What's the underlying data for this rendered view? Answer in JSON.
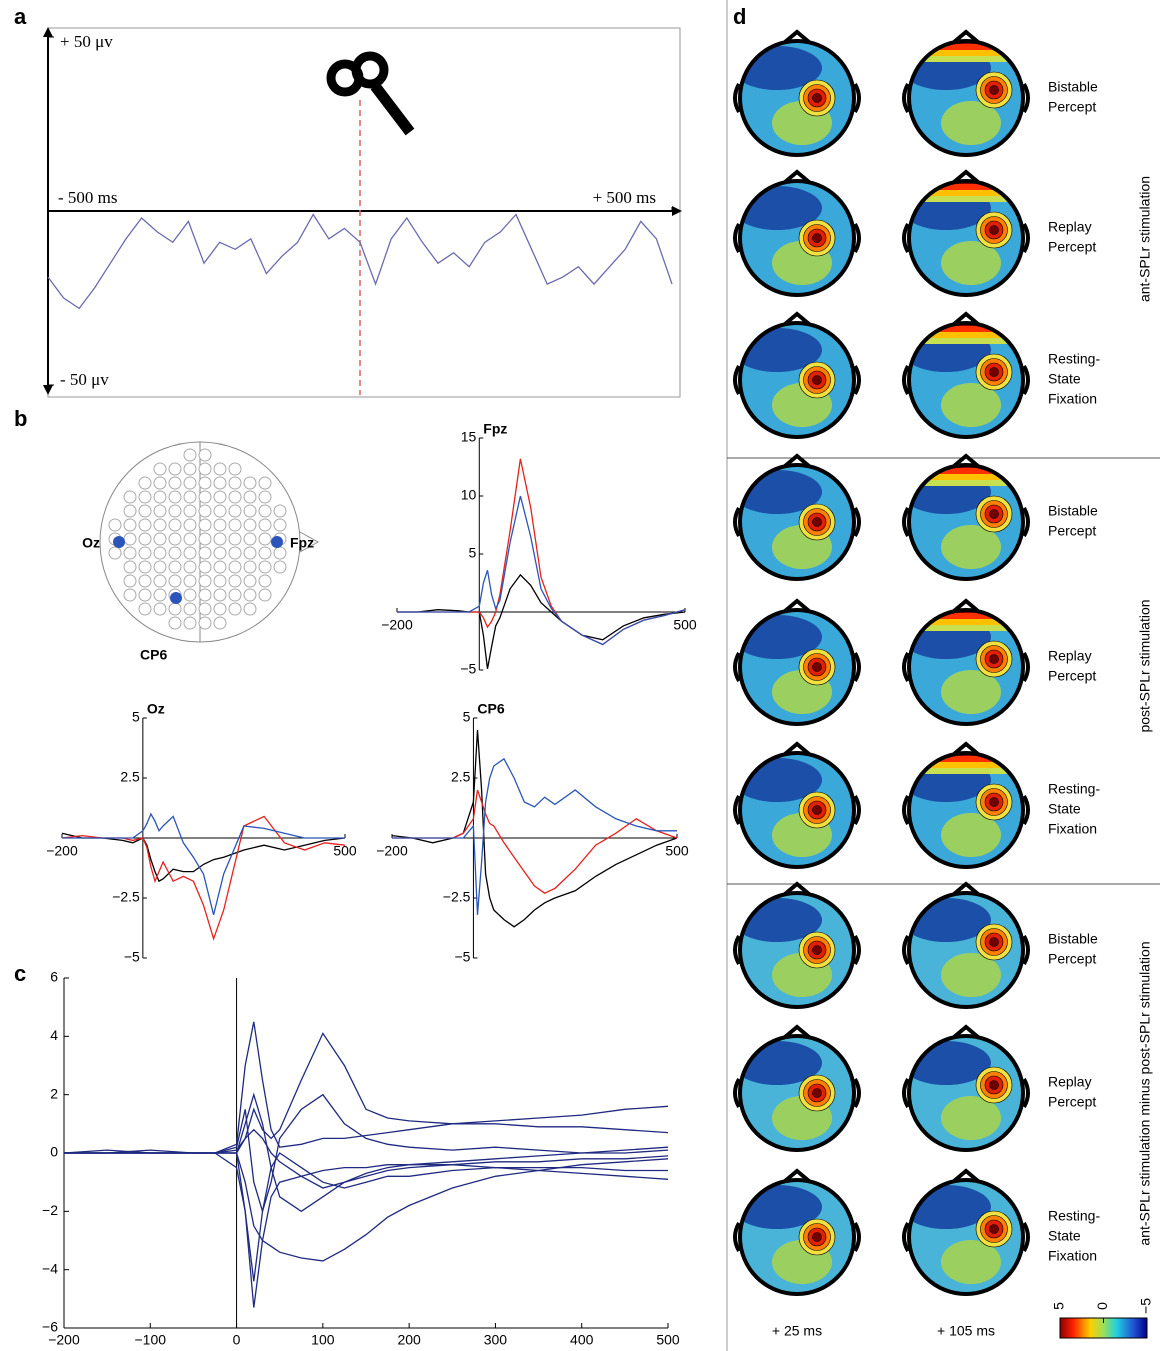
{
  "panel_labels": [
    "a",
    "b",
    "c",
    "d"
  ],
  "chart_data": [
    {
      "type": "line",
      "x": [
        -500,
        -475,
        -450,
        -425,
        -400,
        -375,
        -350,
        -325,
        -300,
        -275,
        -250,
        -225,
        -200,
        -175,
        -150,
        -125,
        -100,
        -75,
        -50,
        -25,
        0,
        25,
        50,
        75,
        100,
        125,
        150,
        175,
        200,
        225,
        250,
        275,
        300,
        325,
        350,
        375,
        400,
        425,
        450,
        475,
        500
      ],
      "series": [
        {
          "color": "#6b6bb0",
          "values": [
            -19,
            -25,
            -28,
            -22,
            -15,
            -8,
            -2,
            -6,
            -9,
            -3,
            -15,
            -9,
            -11,
            -8,
            -18,
            -13,
            -9,
            -1,
            -8,
            -5,
            -9,
            -21,
            -8,
            -2,
            -9,
            -15,
            -12,
            -16,
            -9,
            -6,
            -1,
            -11,
            -21,
            -19,
            -16,
            -21,
            -16,
            -11,
            -3,
            -8,
            -21
          ]
        }
      ],
      "xlim": [
        -500,
        500
      ],
      "ylim": [
        -50,
        50
      ],
      "xticks": [
        {
          "value": -500,
          "label": "- 500 ms"
        },
        {
          "value": 500,
          "label": "+ 500 ms"
        }
      ],
      "yticks": [
        {
          "value": 50,
          "label": "+ 50 μv"
        },
        {
          "value": -50,
          "label": "- 50 μv"
        }
      ],
      "marker_x": 0,
      "marker_color": "#e06060"
    },
    {
      "type": "line",
      "title": "Fpz",
      "x": [
        -200,
        -150,
        -100,
        -50,
        -25,
        0,
        10,
        20,
        30,
        40,
        50,
        75,
        100,
        125,
        150,
        175,
        200,
        250,
        300,
        350,
        400,
        450,
        500
      ],
      "series": [
        {
          "color": "#000000",
          "values": [
            0,
            0,
            0.2,
            0.1,
            0,
            0,
            -2,
            -4.9,
            -3,
            -1.2,
            -0.5,
            2,
            3.2,
            2.3,
            0.8,
            0,
            -0.8,
            -2,
            -2.4,
            -1.2,
            -0.5,
            -0.2,
            0
          ]
        },
        {
          "color": "#e8211d",
          "values": [
            0,
            0,
            0,
            0,
            0,
            0,
            -0.5,
            -1.3,
            -0.8,
            0,
            1.5,
            7,
            13.2,
            9,
            3,
            0.5,
            -0.8,
            -2,
            -2.8,
            -1.5,
            -0.7,
            -0.3,
            0.2
          ]
        },
        {
          "color": "#2b55b8",
          "values": [
            0,
            0,
            0,
            0,
            0,
            0.5,
            2.5,
            3.6,
            1.5,
            0.3,
            1,
            6,
            10,
            6.5,
            2,
            0.3,
            -0.8,
            -2,
            -2.8,
            -1.5,
            -0.7,
            -0.3,
            0.2
          ]
        }
      ],
      "xlim": [
        -200,
        500
      ],
      "ylim": [
        -5,
        15
      ],
      "xticks": [
        {
          "value": -200,
          "label": "−200"
        },
        500
      ],
      "yticks": [
        {
          "value": -5,
          "label": "−5"
        },
        5,
        10,
        15
      ]
    },
    {
      "type": "line",
      "title": "Oz",
      "x": [
        -200,
        -150,
        -100,
        -50,
        -25,
        0,
        10,
        20,
        30,
        40,
        50,
        75,
        100,
        125,
        150,
        175,
        200,
        250,
        300,
        350,
        400,
        450,
        500
      ],
      "series": [
        {
          "color": "#000000",
          "values": [
            0.2,
            0,
            0,
            -0.1,
            -0.2,
            0,
            -0.3,
            -0.9,
            -1.4,
            -1.8,
            -1.7,
            -1.3,
            -1.4,
            -1.4,
            -1.1,
            -0.9,
            -0.8,
            -0.5,
            -0.3,
            -0.5,
            -0.3,
            -0.1,
            0
          ]
        },
        {
          "color": "#e8211d",
          "values": [
            0,
            0.1,
            0,
            0,
            -0.1,
            0,
            -0.4,
            -1.2,
            -1.8,
            -1.4,
            -1,
            -1.8,
            -1.6,
            -1.8,
            -2.8,
            -4.2,
            -3,
            0.5,
            0.9,
            -0.2,
            -0.5,
            -0.2,
            -0.3
          ]
        },
        {
          "color": "#2b55b8",
          "values": [
            0,
            0,
            0,
            0,
            0,
            0.3,
            0.6,
            1,
            0.7,
            0.3,
            0.5,
            0.9,
            -0.2,
            -0.8,
            -1.5,
            -3.2,
            -1.5,
            0.5,
            0.4,
            0.2,
            0,
            0,
            0
          ]
        }
      ],
      "xlim": [
        -200,
        500
      ],
      "ylim": [
        -5,
        5
      ],
      "xticks": [
        {
          "value": -200,
          "label": "−200"
        },
        500
      ],
      "yticks": [
        {
          "value": -5,
          "label": "−5"
        },
        {
          "value": -2.5,
          "label": "−2.5"
        },
        2.5,
        5
      ]
    },
    {
      "type": "line",
      "title": "CP6",
      "x": [
        -200,
        -150,
        -100,
        -50,
        -25,
        0,
        10,
        20,
        30,
        40,
        50,
        75,
        100,
        125,
        150,
        175,
        200,
        250,
        300,
        350,
        400,
        450,
        500
      ],
      "series": [
        {
          "color": "#000000",
          "values": [
            0.1,
            0,
            -0.2,
            0,
            0.2,
            1.5,
            4.5,
            2,
            -1.5,
            -2.5,
            -3,
            -3.4,
            -3.7,
            -3.4,
            -3,
            -2.7,
            -2.5,
            -2.2,
            -1.6,
            -1.1,
            -0.7,
            -0.3,
            0
          ]
        },
        {
          "color": "#e8211d",
          "values": [
            0,
            0,
            0,
            0,
            0.2,
            0.8,
            2,
            1.5,
            1,
            0.6,
            0.5,
            -0.2,
            -0.8,
            -1.4,
            -2,
            -2.3,
            -2.1,
            -1.3,
            -0.3,
            0.2,
            0.8,
            0.3,
            0
          ]
        },
        {
          "color": "#2b55b8",
          "values": [
            0,
            0,
            0,
            0,
            0,
            0.5,
            -3.2,
            -1,
            1.5,
            2.5,
            3,
            3.3,
            2.5,
            1.5,
            1.3,
            1.7,
            1.4,
            2,
            1.3,
            0.8,
            0.5,
            0.3,
            0.3
          ]
        }
      ],
      "xlim": [
        -200,
        500
      ],
      "ylim": [
        -5,
        5
      ],
      "xticks": [
        {
          "value": -200,
          "label": "−200"
        },
        500
      ],
      "yticks": [
        {
          "value": -5,
          "label": "−5"
        },
        {
          "value": -2.5,
          "label": "−2.5"
        },
        2.5,
        5
      ]
    },
    {
      "type": "line",
      "x": [
        -200,
        -150,
        -100,
        -50,
        -25,
        0,
        10,
        20,
        30,
        40,
        50,
        75,
        100,
        125,
        150,
        175,
        200,
        250,
        300,
        350,
        400,
        450,
        500
      ],
      "series": [
        {
          "color": "#1f2a80",
          "values": [
            0,
            0.1,
            0,
            0,
            0,
            0.3,
            3,
            4.5,
            2.5,
            0.8,
            0.2,
            0.3,
            0.5,
            0.5,
            0.6,
            0.7,
            0.8,
            1,
            1.1,
            1.2,
            1.3,
            1.5,
            1.6
          ]
        },
        {
          "color": "#1f2a80",
          "values": [
            0,
            0,
            0,
            0,
            0,
            0,
            -2,
            -5.3,
            -3,
            -1.5,
            -1,
            -0.8,
            -0.6,
            -0.5,
            -0.5,
            -0.4,
            -0.4,
            -0.4,
            -0.5,
            -0.5,
            -0.5,
            -0.6,
            -0.6
          ]
        },
        {
          "color": "#1f2a80",
          "values": [
            0,
            0,
            0.1,
            0,
            0,
            0.1,
            0.5,
            1.5,
            0.8,
            0.5,
            0.8,
            2.5,
            4.1,
            3,
            1.5,
            1.2,
            1.1,
            1,
            1,
            0.9,
            0.9,
            0.8,
            0.7
          ]
        },
        {
          "color": "#1f2a80",
          "values": [
            0,
            0,
            0,
            0,
            0,
            0,
            -1,
            -2.5,
            -3,
            -3.2,
            -3.4,
            -3.6,
            -3.7,
            -3.3,
            -2.8,
            -2.2,
            -1.8,
            -1.2,
            -0.8,
            -0.6,
            -0.4,
            -0.3,
            -0.2
          ]
        },
        {
          "color": "#1f2a80",
          "values": [
            0,
            0,
            0,
            0,
            0,
            0,
            1,
            2,
            1,
            -0.5,
            -1.5,
            -2,
            -1.5,
            -1,
            -0.8,
            -0.6,
            -0.5,
            -0.4,
            -0.3,
            -0.3,
            -0.2,
            -0.2,
            -0.1
          ]
        },
        {
          "color": "#1f2a80",
          "values": [
            0,
            0,
            0,
            0,
            0,
            0.2,
            1.5,
            -1,
            -2,
            -1,
            0.5,
            1.5,
            2,
            1,
            0.5,
            0.3,
            0.2,
            0.1,
            0.2,
            0.1,
            0,
            0.1,
            0.2
          ]
        },
        {
          "color": "#1f2a80",
          "values": [
            0,
            0,
            0,
            0,
            0,
            -0.5,
            -2,
            -4.4,
            -2,
            -0.5,
            0,
            -0.5,
            -1,
            -1.2,
            -1,
            -0.8,
            -0.8,
            -0.6,
            -0.5,
            -0.6,
            -0.7,
            -0.8,
            -0.9
          ]
        },
        {
          "color": "#1f2a80",
          "values": [
            0,
            0,
            0,
            0,
            0,
            0,
            0.5,
            0.8,
            0.5,
            0,
            -0.3,
            -0.8,
            -1.2,
            -1,
            -0.7,
            -0.5,
            -0.4,
            -0.3,
            -0.2,
            -0.1,
            0,
            0,
            0.1
          ]
        }
      ],
      "xlim": [
        -200,
        500
      ],
      "ylim": [
        -6,
        6
      ],
      "xticks": [
        {
          "value": -200,
          "label": "−200"
        },
        {
          "value": -100,
          "label": "−100"
        },
        0,
        100,
        200,
        300,
        400,
        500
      ],
      "yticks": [
        {
          "value": -6,
          "label": "−6"
        },
        {
          "value": -4,
          "label": "−4"
        },
        {
          "value": -2,
          "label": "−2"
        },
        0,
        2,
        4,
        6
      ]
    }
  ],
  "electrode_map": {
    "labels": [
      "Oz",
      "Fpz",
      "CP6"
    ]
  },
  "topomaps": {
    "times": [
      "+ 25 ms",
      "+ 105 ms"
    ],
    "groups": [
      {
        "label": "ant-SPLr stimulation",
        "rows": [
          [
            "Bistable",
            "Percept"
          ],
          [
            "Replay",
            "Percept"
          ],
          [
            "Resting-",
            "State",
            "Fixation"
          ]
        ]
      },
      {
        "label": "post-SPLr stimulation",
        "rows": [
          [
            "Bistable",
            "Percept"
          ],
          [
            "Replay",
            "Percept"
          ],
          [
            "Resting-",
            "State",
            "Fixation"
          ]
        ]
      },
      {
        "label": "ant-SPLr stimulation minus post-SPLr stimulation",
        "rows": [
          [
            "Bistable",
            "Percept"
          ],
          [
            "Replay",
            "Percept"
          ],
          [
            "Resting-",
            "State",
            "Fixation"
          ]
        ]
      }
    ],
    "colorbar": {
      "clim": [
        -5,
        5
      ],
      "ticks": [
        5,
        0,
        {
          "value": -5,
          "label": "−5"
        }
      ]
    }
  }
}
